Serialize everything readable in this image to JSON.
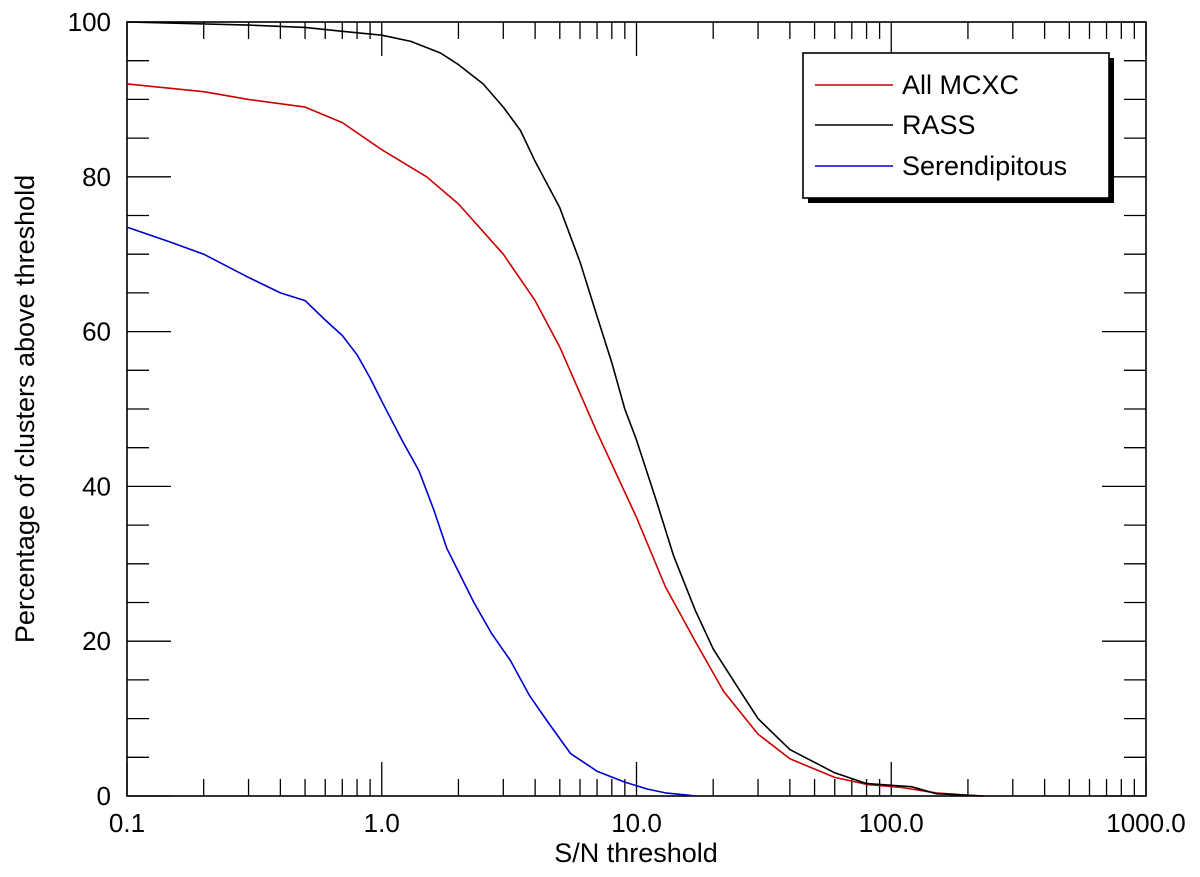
{
  "chart_data": {
    "type": "line",
    "title": "",
    "xlabel": "S/N threshold",
    "ylabel": "Percentage of clusters above threshold",
    "x_scale": "log",
    "xlim": [
      0.1,
      1000
    ],
    "ylim": [
      0,
      100
    ],
    "x_ticks": [
      0.1,
      1,
      10,
      100,
      1000
    ],
    "x_tick_labels": [
      "0.1",
      "1.0",
      "10.0",
      "100.0",
      "1000.0"
    ],
    "y_ticks": [
      0,
      20,
      40,
      60,
      80,
      100
    ],
    "y_tick_labels": [
      "0",
      "20",
      "40",
      "60",
      "80",
      "100"
    ],
    "grid": false,
    "legend_position": "top-right",
    "series": [
      {
        "name": "All MCXC",
        "color": "#cc0000",
        "points": [
          [
            0.1,
            92
          ],
          [
            0.2,
            91
          ],
          [
            0.3,
            90
          ],
          [
            0.5,
            89
          ],
          [
            0.7,
            87
          ],
          [
            1.0,
            83.5
          ],
          [
            1.5,
            80
          ],
          [
            2.0,
            76.5
          ],
          [
            3.0,
            70
          ],
          [
            4.0,
            64
          ],
          [
            5.0,
            58
          ],
          [
            7.0,
            47
          ],
          [
            10.0,
            36
          ],
          [
            13.0,
            27
          ],
          [
            17.0,
            20
          ],
          [
            22.0,
            13.5
          ],
          [
            30.0,
            8
          ],
          [
            40.0,
            4.8
          ],
          [
            60.0,
            2.4
          ],
          [
            80.0,
            1.5
          ],
          [
            110.0,
            1.1
          ],
          [
            150.0,
            0.4
          ],
          [
            200.0,
            0.1
          ],
          [
            230.0,
            0
          ]
        ]
      },
      {
        "name": "RASS",
        "color": "#000000",
        "points": [
          [
            0.1,
            100
          ],
          [
            0.3,
            99.6
          ],
          [
            0.5,
            99.3
          ],
          [
            0.7,
            98.8
          ],
          [
            1.0,
            98.3
          ],
          [
            1.3,
            97.5
          ],
          [
            1.7,
            96
          ],
          [
            2.0,
            94.5
          ],
          [
            2.5,
            92
          ],
          [
            3.0,
            89
          ],
          [
            3.5,
            86
          ],
          [
            4.0,
            82
          ],
          [
            5.0,
            76
          ],
          [
            6.0,
            69
          ],
          [
            7.0,
            62
          ],
          [
            8.0,
            56
          ],
          [
            9.0,
            50
          ],
          [
            10.0,
            46
          ],
          [
            12.0,
            38
          ],
          [
            14.0,
            31
          ],
          [
            17.0,
            24
          ],
          [
            20.0,
            19
          ],
          [
            25.0,
            14
          ],
          [
            30.0,
            10
          ],
          [
            40.0,
            6
          ],
          [
            60.0,
            3
          ],
          [
            80.0,
            1.6
          ],
          [
            120.0,
            1.2
          ],
          [
            150.0,
            0.3
          ],
          [
            230.0,
            0
          ]
        ]
      },
      {
        "name": "Serendipitous",
        "color": "#0000cc",
        "points": [
          [
            0.1,
            73.5
          ],
          [
            0.15,
            71.5
          ],
          [
            0.2,
            70
          ],
          [
            0.3,
            67
          ],
          [
            0.4,
            65
          ],
          [
            0.5,
            64
          ],
          [
            0.6,
            61.5
          ],
          [
            0.7,
            59.5
          ],
          [
            0.8,
            57
          ],
          [
            0.9,
            54
          ],
          [
            1.0,
            51
          ],
          [
            1.2,
            46
          ],
          [
            1.4,
            42
          ],
          [
            1.6,
            37
          ],
          [
            1.8,
            32
          ],
          [
            2.0,
            29
          ],
          [
            2.3,
            25
          ],
          [
            2.7,
            21
          ],
          [
            3.2,
            17.5
          ],
          [
            3.8,
            13
          ],
          [
            4.5,
            9.5
          ],
          [
            5.5,
            5.5
          ],
          [
            7.0,
            3.2
          ],
          [
            9.0,
            1.8
          ],
          [
            11.0,
            0.9
          ],
          [
            13.0,
            0.4
          ],
          [
            16.0,
            0.1
          ],
          [
            17.0,
            0
          ]
        ]
      }
    ]
  }
}
